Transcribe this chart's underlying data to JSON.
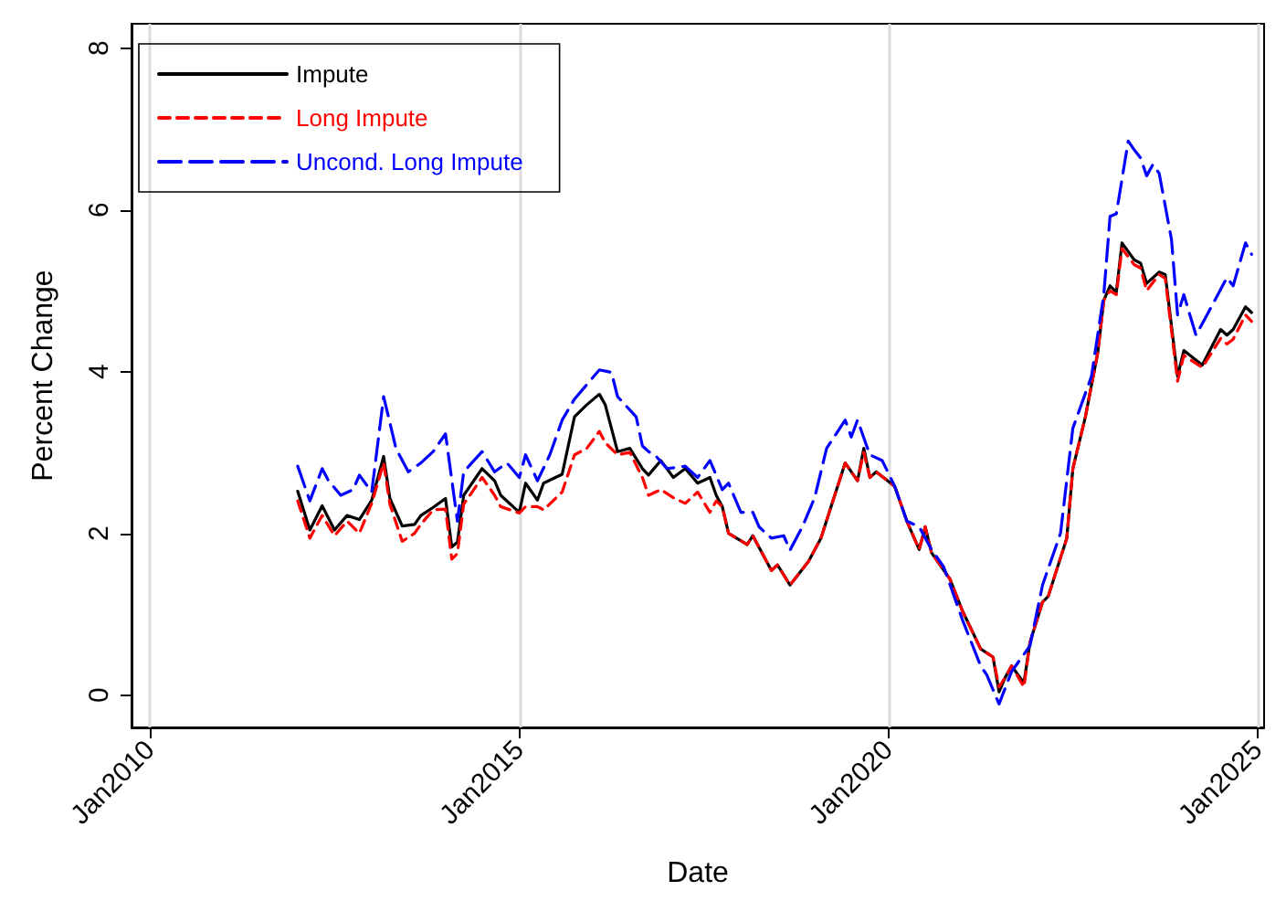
{
  "chart_data": {
    "type": "line",
    "xlabel": "Date",
    "ylabel": "Percent Change",
    "xlim": [
      "2009-10",
      "2025-02"
    ],
    "xticks": [
      {
        "value": "2010-01",
        "label": "Jan2010"
      },
      {
        "value": "2015-01",
        "label": "Jan2015"
      },
      {
        "value": "2020-01",
        "label": "Jan2020"
      },
      {
        "value": "2025-01",
        "label": "Jan2025"
      }
    ],
    "ylim": [
      -0.4,
      8.3
    ],
    "yticks": [
      0,
      2,
      4,
      6,
      8
    ],
    "grid": "x",
    "legend": "top left",
    "marker": "none",
    "series": [
      {
        "name": "Impute",
        "color": "#000000",
        "line_style": "solid",
        "x": [
          "2012-01",
          "2012-03",
          "2012-05",
          "2012-07",
          "2012-09",
          "2012-11",
          "2013-01",
          "2013-03",
          "2013-04",
          "2013-06",
          "2013-08",
          "2013-09",
          "2013-11",
          "2014-01",
          "2014-02",
          "2014-03",
          "2014-04",
          "2014-07",
          "2014-09",
          "2014-10",
          "2015-01",
          "2015-02",
          "2015-04",
          "2015-05",
          "2015-08",
          "2015-10",
          "2015-12",
          "2016-02",
          "2016-03",
          "2016-05",
          "2016-07",
          "2016-09",
          "2016-10",
          "2016-12",
          "2017-02",
          "2017-04",
          "2017-06",
          "2017-08",
          "2017-09",
          "2017-10",
          "2017-11",
          "2018-02",
          "2018-03",
          "2018-06",
          "2018-07",
          "2018-09",
          "2018-12",
          "2019-02",
          "2019-04",
          "2019-06",
          "2019-08",
          "2019-09",
          "2019-10",
          "2019-11",
          "2020-02",
          "2020-04",
          "2020-06",
          "2020-07",
          "2020-08",
          "2020-11",
          "2021-01",
          "2021-04",
          "2021-06",
          "2021-07",
          "2021-08",
          "2021-09",
          "2021-11",
          "2021-12",
          "2022-02",
          "2022-03",
          "2022-06",
          "2022-07",
          "2022-09",
          "2022-11",
          "2022-12",
          "2023-01",
          "2023-02",
          "2023-03",
          "2023-05",
          "2023-06",
          "2023-07",
          "2023-09",
          "2023-10",
          "2023-12",
          "2024-01",
          "2024-04",
          "2024-07",
          "2024-08",
          "2024-09",
          "2024-11",
          "2024-12"
        ],
        "values": [
          2.52,
          2.04,
          2.34,
          2.04,
          2.22,
          2.17,
          2.41,
          2.95,
          2.43,
          2.09,
          2.11,
          2.22,
          2.32,
          2.43,
          1.83,
          1.89,
          2.47,
          2.8,
          2.65,
          2.47,
          2.26,
          2.62,
          2.41,
          2.62,
          2.73,
          3.44,
          3.59,
          3.72,
          3.59,
          3.01,
          3.05,
          2.8,
          2.72,
          2.9,
          2.69,
          2.8,
          2.62,
          2.69,
          2.47,
          2.33,
          2.0,
          1.86,
          1.97,
          1.54,
          1.61,
          1.36,
          1.65,
          1.94,
          2.4,
          2.87,
          2.65,
          3.05,
          2.69,
          2.76,
          2.58,
          2.15,
          1.8,
          2.08,
          1.76,
          1.43,
          1.04,
          0.57,
          0.47,
          0.04,
          0.22,
          0.36,
          0.15,
          0.65,
          1.15,
          1.22,
          1.94,
          2.8,
          3.44,
          4.23,
          4.88,
          5.06,
          4.98,
          5.59,
          5.38,
          5.34,
          5.09,
          5.23,
          5.2,
          3.94,
          4.26,
          4.08,
          4.52,
          4.45,
          4.52,
          4.8,
          4.73
        ]
      },
      {
        "name": "Long Impute",
        "color": "#ff0000",
        "line_style": "dashed",
        "x": [
          "2012-01",
          "2012-03",
          "2012-05",
          "2012-07",
          "2012-09",
          "2012-11",
          "2013-01",
          "2013-03",
          "2013-04",
          "2013-06",
          "2013-08",
          "2013-09",
          "2013-11",
          "2014-01",
          "2014-02",
          "2014-03",
          "2014-04",
          "2014-07",
          "2014-09",
          "2014-10",
          "2015-01",
          "2015-02",
          "2015-04",
          "2015-05",
          "2015-08",
          "2015-10",
          "2015-12",
          "2016-02",
          "2016-03",
          "2016-05",
          "2016-07",
          "2016-09",
          "2016-10",
          "2016-12",
          "2017-02",
          "2017-04",
          "2017-06",
          "2017-08",
          "2017-09",
          "2017-10",
          "2017-11",
          "2018-02",
          "2018-03",
          "2018-06",
          "2018-07",
          "2018-09",
          "2018-12",
          "2019-02",
          "2019-04",
          "2019-06",
          "2019-08",
          "2019-09",
          "2019-10",
          "2019-11",
          "2020-02",
          "2020-04",
          "2020-06",
          "2020-07",
          "2020-08",
          "2020-11",
          "2021-01",
          "2021-04",
          "2021-06",
          "2021-07",
          "2021-08",
          "2021-09",
          "2021-11",
          "2021-12",
          "2022-02",
          "2022-03",
          "2022-06",
          "2022-07",
          "2022-09",
          "2022-11",
          "2022-12",
          "2023-01",
          "2023-02",
          "2023-03",
          "2023-05",
          "2023-06",
          "2023-07",
          "2023-09",
          "2023-10",
          "2023-12",
          "2024-01",
          "2024-04",
          "2024-07",
          "2024-08",
          "2024-09",
          "2024-11",
          "2024-12"
        ],
        "values": [
          2.4,
          1.94,
          2.22,
          1.97,
          2.15,
          2.0,
          2.37,
          2.87,
          2.36,
          1.9,
          2.0,
          2.11,
          2.29,
          2.3,
          1.68,
          1.75,
          2.36,
          2.69,
          2.47,
          2.33,
          2.25,
          2.33,
          2.33,
          2.29,
          2.51,
          2.97,
          3.05,
          3.26,
          3.12,
          2.97,
          3.0,
          2.69,
          2.47,
          2.54,
          2.44,
          2.37,
          2.51,
          2.26,
          2.4,
          2.33,
          2.0,
          1.86,
          1.97,
          1.54,
          1.61,
          1.36,
          1.65,
          1.94,
          2.4,
          2.87,
          2.65,
          3.0,
          2.69,
          2.76,
          2.58,
          2.15,
          1.8,
          2.08,
          1.76,
          1.43,
          1.04,
          0.57,
          0.47,
          0.1,
          0.22,
          0.36,
          0.1,
          0.65,
          1.15,
          1.22,
          1.94,
          2.8,
          3.44,
          4.23,
          4.88,
          5.0,
          4.95,
          5.52,
          5.32,
          5.28,
          5.0,
          5.2,
          5.15,
          3.88,
          4.2,
          4.05,
          4.41,
          4.34,
          4.4,
          4.7,
          4.62
        ]
      },
      {
        "name": "Uncond. Long Impute",
        "color": "#0000ff",
        "line_style": "dashed",
        "x": [
          "2012-01",
          "2012-03",
          "2012-05",
          "2012-06",
          "2012-08",
          "2012-10",
          "2012-11",
          "2013-01",
          "2013-03",
          "2013-05",
          "2013-07",
          "2013-09",
          "2013-11",
          "2014-01",
          "2014-03",
          "2014-04",
          "2014-07",
          "2014-09",
          "2014-11",
          "2015-01",
          "2015-02",
          "2015-04",
          "2015-06",
          "2015-08",
          "2015-10",
          "2016-02",
          "2016-04",
          "2016-05",
          "2016-08",
          "2016-09",
          "2016-10",
          "2016-11",
          "2017-01",
          "2017-04",
          "2017-06",
          "2017-08",
          "2017-10",
          "2017-11",
          "2018-01",
          "2018-03",
          "2018-04",
          "2018-06",
          "2018-08",
          "2018-09",
          "2018-11",
          "2019-01",
          "2019-03",
          "2019-06",
          "2019-07",
          "2019-08",
          "2019-10",
          "2019-12",
          "2020-02",
          "2020-04",
          "2020-06",
          "2020-08",
          "2020-10",
          "2021-01",
          "2021-04",
          "2021-05",
          "2021-07",
          "2021-09",
          "2021-12",
          "2022-02",
          "2022-05",
          "2022-07",
          "2022-10",
          "2022-12",
          "2023-01",
          "2023-02",
          "2023-04",
          "2023-05",
          "2023-06",
          "2023-07",
          "2023-08",
          "2023-09",
          "2023-11",
          "2023-12",
          "2024-01",
          "2024-03",
          "2024-05",
          "2024-08",
          "2024-09",
          "2024-11",
          "2024-12"
        ],
        "values": [
          2.83,
          2.4,
          2.8,
          2.65,
          2.47,
          2.54,
          2.72,
          2.51,
          3.69,
          3.05,
          2.76,
          2.87,
          3.01,
          3.23,
          2.15,
          2.76,
          3.01,
          2.76,
          2.87,
          2.69,
          2.97,
          2.65,
          2.97,
          3.4,
          3.66,
          4.02,
          3.99,
          3.69,
          3.44,
          3.08,
          3.01,
          2.97,
          2.8,
          2.83,
          2.69,
          2.9,
          2.54,
          2.62,
          2.26,
          2.26,
          2.08,
          1.94,
          1.97,
          1.79,
          2.08,
          2.44,
          3.05,
          3.4,
          3.19,
          3.4,
          2.97,
          2.9,
          2.58,
          2.15,
          2.08,
          1.8,
          1.58,
          0.93,
          0.36,
          0.25,
          -0.11,
          0.29,
          0.61,
          1.36,
          2.0,
          3.3,
          3.94,
          4.95,
          5.92,
          5.95,
          6.85,
          6.74,
          6.64,
          6.42,
          6.56,
          6.45,
          5.63,
          4.7,
          4.95,
          4.45,
          4.73,
          5.16,
          5.06,
          5.59,
          5.45
        ]
      }
    ]
  }
}
